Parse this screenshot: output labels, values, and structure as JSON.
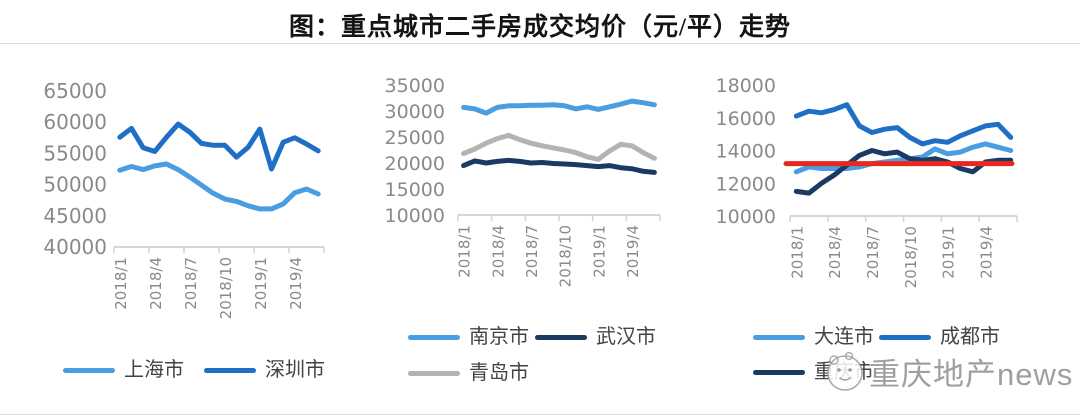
{
  "title": "图：重点城市二手房成交均价（元/平）走势",
  "watermark": {
    "text": "重庆地产news",
    "logo": "panda-circle-logo"
  },
  "palette": {
    "light_blue": "#4A9DE0",
    "dark_blue": "#1E6FC5",
    "navy": "#1A3A64",
    "gray": "#B3B3B3",
    "red": "#E8281E",
    "axis_line": "#D6D6D6",
    "tick_text": "#8A8A8A",
    "legend_text": "#434343"
  },
  "chart_data": [
    {
      "type": "line",
      "title": "",
      "x": [
        "2018/1",
        "2018/2",
        "2018/3",
        "2018/4",
        "2018/5",
        "2018/6",
        "2018/7",
        "2018/8",
        "2018/9",
        "2018/10",
        "2018/11",
        "2018/12",
        "2019/1",
        "2019/2",
        "2019/3",
        "2019/4",
        "2019/5",
        "2019/6"
      ],
      "x_tick_labels": [
        "2018/1",
        "2018/4",
        "2018/7",
        "2018/10",
        "2019/1",
        "2019/4"
      ],
      "ylim": [
        40000,
        65000
      ],
      "y_ticks": [
        65000,
        60000,
        55000,
        50000,
        45000,
        40000
      ],
      "grid": false,
      "legend_position": "bottom",
      "series": [
        {
          "id": "shanghai",
          "name": "上海市",
          "color": "#4A9DE0",
          "values": [
            52300,
            52900,
            52400,
            53000,
            53300,
            52400,
            51200,
            49900,
            48600,
            47700,
            47300,
            46600,
            46100,
            46100,
            46900,
            48700,
            49300,
            48500
          ]
        },
        {
          "id": "shenzhen",
          "name": "深圳市",
          "color": "#1E6FC5",
          "values": [
            57600,
            59000,
            55900,
            55300,
            57600,
            59700,
            58400,
            56600,
            56300,
            56300,
            54400,
            56000,
            58900,
            52500,
            56800,
            57500,
            56500,
            55400
          ]
        }
      ],
      "legend_rows": [
        [
          "上海市",
          "深圳市"
        ]
      ]
    },
    {
      "type": "line",
      "title": "",
      "x": [
        "2018/1",
        "2018/2",
        "2018/3",
        "2018/4",
        "2018/5",
        "2018/6",
        "2018/7",
        "2018/8",
        "2018/9",
        "2018/10",
        "2018/11",
        "2018/12",
        "2019/1",
        "2019/2",
        "2019/3",
        "2019/4",
        "2019/5",
        "2019/6"
      ],
      "x_tick_labels": [
        "2018/1",
        "2018/4",
        "2018/7",
        "2018/10",
        "2019/1",
        "2019/4"
      ],
      "ylim": [
        10000,
        35000
      ],
      "y_ticks": [
        35000,
        30000,
        25000,
        20000,
        15000,
        10000
      ],
      "grid": false,
      "legend_position": "bottom",
      "series": [
        {
          "id": "nanjing",
          "name": "南京市",
          "color": "#4A9DE0",
          "values": [
            30700,
            30400,
            29600,
            30700,
            31000,
            31000,
            31100,
            31100,
            31200,
            31000,
            30400,
            30800,
            30300,
            30800,
            31300,
            31900,
            31600,
            31200
          ]
        },
        {
          "id": "wuhan",
          "name": "武汉市",
          "color": "#1A3A64",
          "values": [
            19500,
            20400,
            20000,
            20300,
            20500,
            20300,
            20000,
            20100,
            19900,
            19800,
            19700,
            19500,
            19300,
            19500,
            19100,
            18900,
            18400,
            18200
          ]
        },
        {
          "id": "qingdao",
          "name": "青岛市",
          "color": "#B3B3B3",
          "values": [
            21800,
            22700,
            23800,
            24700,
            25300,
            24500,
            23800,
            23300,
            22900,
            22500,
            22000,
            21200,
            20700,
            22300,
            23600,
            23300,
            22000,
            20900
          ]
        }
      ],
      "legend_rows": [
        [
          "南京市",
          "武汉市"
        ],
        [
          "青岛市"
        ]
      ]
    },
    {
      "type": "line",
      "title": "",
      "x": [
        "2018/1",
        "2018/2",
        "2018/3",
        "2018/4",
        "2018/5",
        "2018/6",
        "2018/7",
        "2018/8",
        "2018/9",
        "2018/10",
        "2018/11",
        "2018/12",
        "2019/1",
        "2019/2",
        "2019/3",
        "2019/4",
        "2019/5",
        "2019/6"
      ],
      "x_tick_labels": [
        "2018/1",
        "2018/4",
        "2018/7",
        "2018/10",
        "2019/1",
        "2019/4"
      ],
      "ylim": [
        10000,
        18000
      ],
      "y_ticks": [
        18000,
        16000,
        14000,
        12000,
        10000
      ],
      "grid": false,
      "legend_position": "bottom",
      "series": [
        {
          "id": "dalian",
          "name": "大连市",
          "color": "#4A9DE0",
          "values": [
            12700,
            13000,
            12900,
            12900,
            12900,
            13000,
            13200,
            13300,
            13400,
            13500,
            13600,
            14100,
            13800,
            13900,
            14200,
            14400,
            14200,
            14000
          ]
        },
        {
          "id": "chengdu",
          "name": "成都市",
          "color": "#1E6FC5",
          "values": [
            16100,
            16400,
            16300,
            16500,
            16800,
            15500,
            15100,
            15300,
            15400,
            14800,
            14400,
            14600,
            14500,
            14900,
            15200,
            15500,
            15600,
            14800
          ]
        },
        {
          "id": "chongqing",
          "name": "重庆市",
          "color": "#1A3A64",
          "values": [
            11500,
            11400,
            12000,
            12500,
            13100,
            13700,
            14000,
            13800,
            13900,
            13500,
            13400,
            13500,
            13300,
            12900,
            12700,
            13300,
            13400,
            13400
          ]
        }
      ],
      "reference_line": {
        "id": "average-reference-line",
        "value": 13200,
        "color": "#E8281E"
      },
      "legend_rows": [
        [
          "大连市",
          "成都市"
        ],
        [
          "重庆市"
        ]
      ]
    }
  ]
}
